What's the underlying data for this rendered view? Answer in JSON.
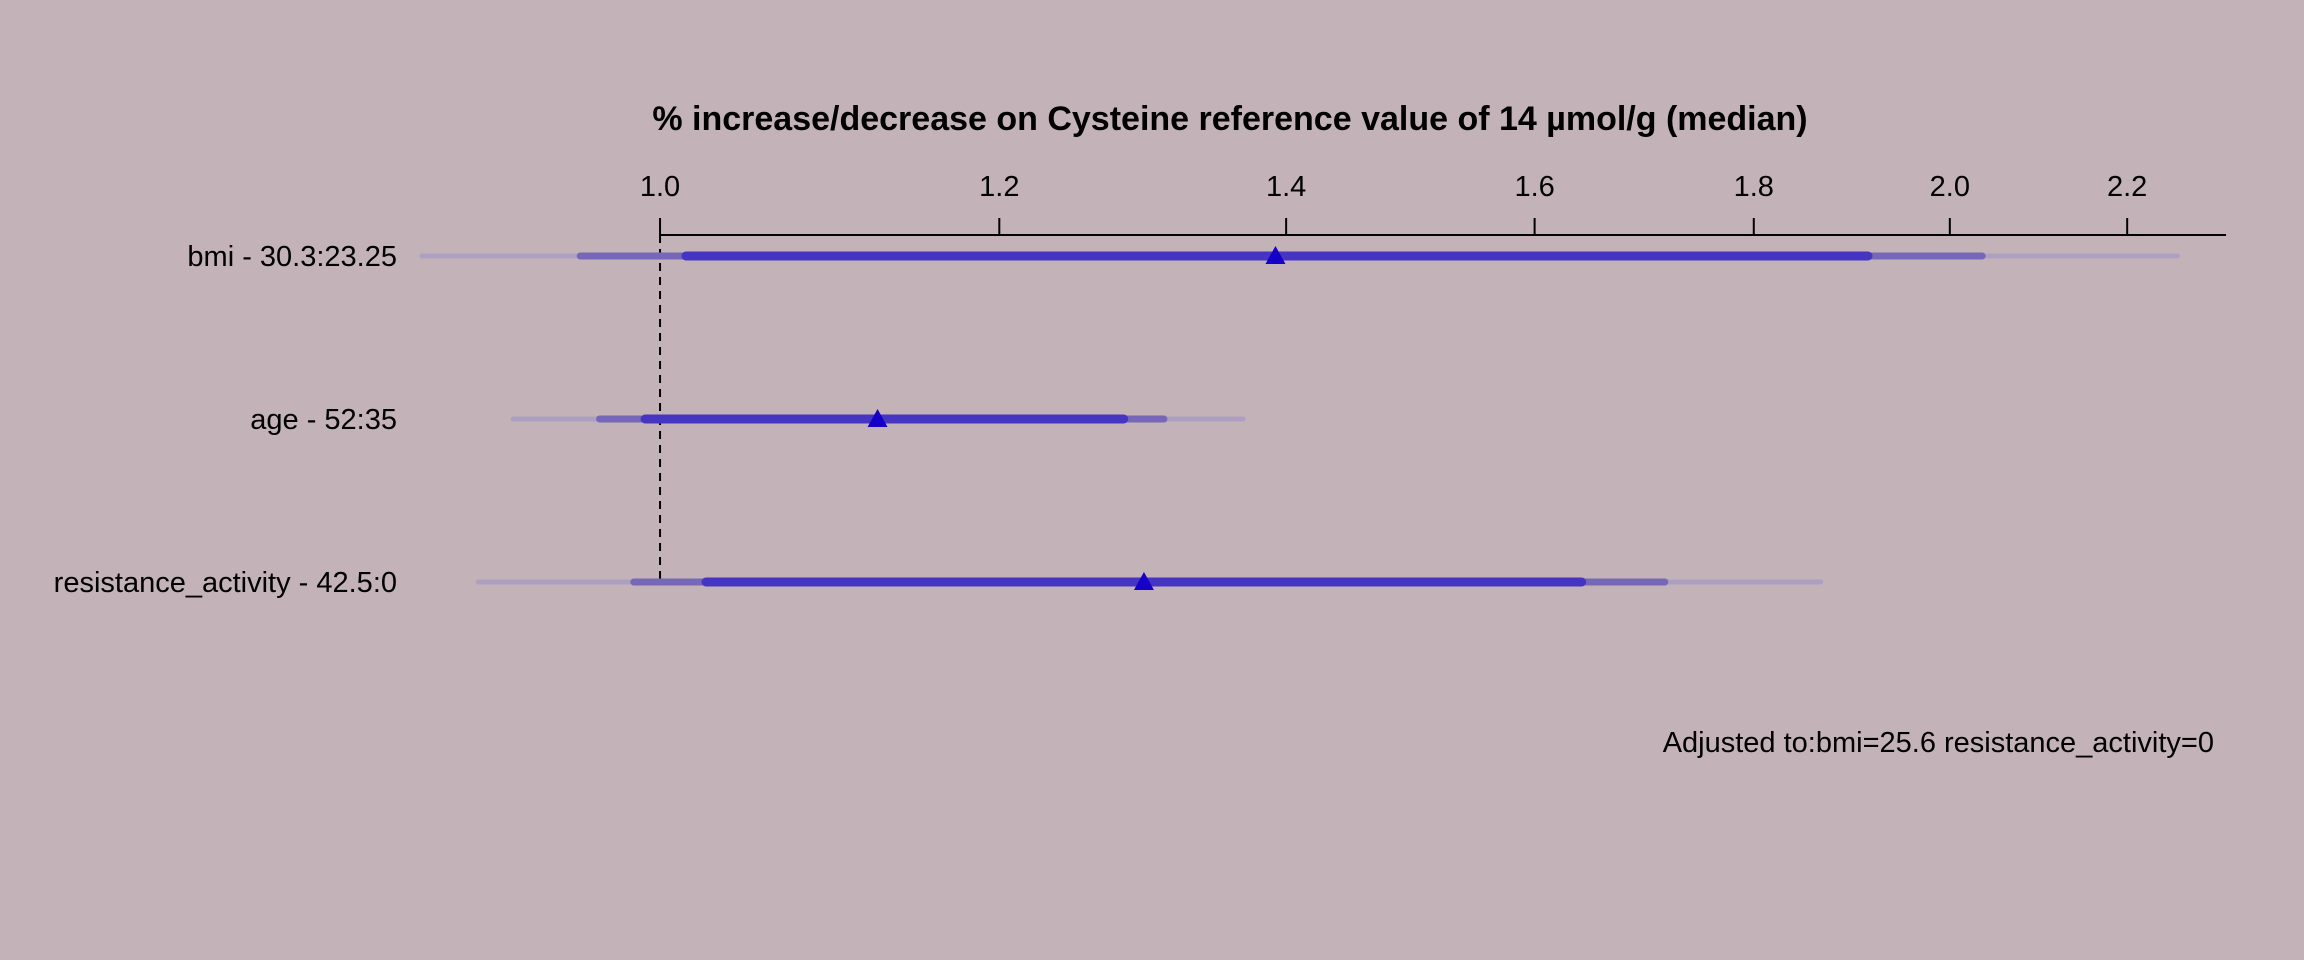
{
  "chart_data": {
    "type": "forest",
    "title": "% increase/decrease on Cysteine reference value of 14 µmol/g (median)",
    "x_scale": "log",
    "xlim": [
      0.9,
      2.32
    ],
    "ticks": [
      {
        "value": 1.0,
        "label": "1.0"
      },
      {
        "value": 1.2,
        "label": "1.2"
      },
      {
        "value": 1.4,
        "label": "1.4"
      },
      {
        "value": 1.6,
        "label": "1.6"
      },
      {
        "value": 1.8,
        "label": "1.8"
      },
      {
        "value": 2.0,
        "label": "2.0"
      },
      {
        "value": 2.2,
        "label": "2.2"
      }
    ],
    "reference_line": 1.0,
    "rows": [
      {
        "label": "bmi - 30.3:23.25",
        "estimate": 1.392,
        "ci_90": [
          1.014,
          1.914
        ],
        "ci_95": [
          0.958,
          2.035
        ],
        "ci_99": [
          0.88,
          2.26
        ]
      },
      {
        "label": "age - 52:35",
        "estimate": 1.124,
        "ci_90": [
          0.992,
          1.283
        ],
        "ci_95": [
          0.968,
          1.311
        ],
        "ci_99": [
          0.924,
          1.368
        ]
      },
      {
        "label": "resistance_activity - 42.5:0",
        "estimate": 1.297,
        "ci_90": [
          1.025,
          1.641
        ],
        "ci_95": [
          0.986,
          1.716
        ],
        "ci_99": [
          0.907,
          1.866
        ]
      }
    ],
    "note": "Adjusted to:bmi=25.6 resistance_activity=0",
    "colors": {
      "background": "#c3b3b9",
      "ci_90": "#4634c3",
      "ci_95": "#7667b8",
      "ci_99": "#ad9fc0",
      "marker": "#1500c8",
      "axis": "#000000"
    }
  }
}
